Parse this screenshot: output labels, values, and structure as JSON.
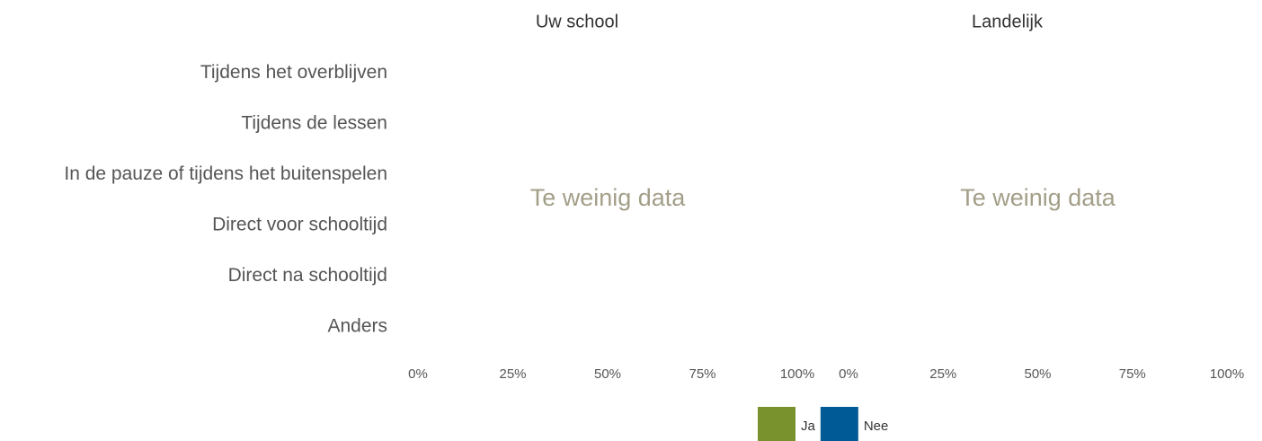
{
  "chart_data": [
    {
      "type": "bar",
      "orientation": "horizontal",
      "stacked": true,
      "title": "Uw school",
      "annotation": "Te weinig data",
      "categories": [
        "Tijdens het overblijven",
        "Tijdens de lessen",
        "In de pauze of tijdens het buitenspelen",
        "Direct voor schooltijd",
        "Direct na schooltijd",
        "Anders"
      ],
      "series": [
        {
          "name": "Ja",
          "color": "#7a922e",
          "values": [
            null,
            null,
            null,
            null,
            null,
            null
          ]
        },
        {
          "name": "Nee",
          "color": "#005a96",
          "values": [
            null,
            null,
            null,
            null,
            null,
            null
          ]
        }
      ],
      "xlim": [
        0,
        100
      ],
      "xticks": [
        {
          "value": 0,
          "label": "0%"
        },
        {
          "value": 25,
          "label": "25%"
        },
        {
          "value": 50,
          "label": "50%"
        },
        {
          "value": 75,
          "label": "75%"
        },
        {
          "value": 100,
          "label": "100%"
        }
      ]
    },
    {
      "type": "bar",
      "orientation": "horizontal",
      "stacked": true,
      "title": "Landelijk",
      "annotation": "Te weinig data",
      "xlim": [
        0,
        100
      ],
      "xticks": [
        {
          "value": 0,
          "label": "0%"
        },
        {
          "value": 25,
          "label": "25%"
        },
        {
          "value": 50,
          "label": "50%"
        },
        {
          "value": 75,
          "label": "75%"
        },
        {
          "value": 100,
          "label": "100%"
        }
      ]
    }
  ]
}
